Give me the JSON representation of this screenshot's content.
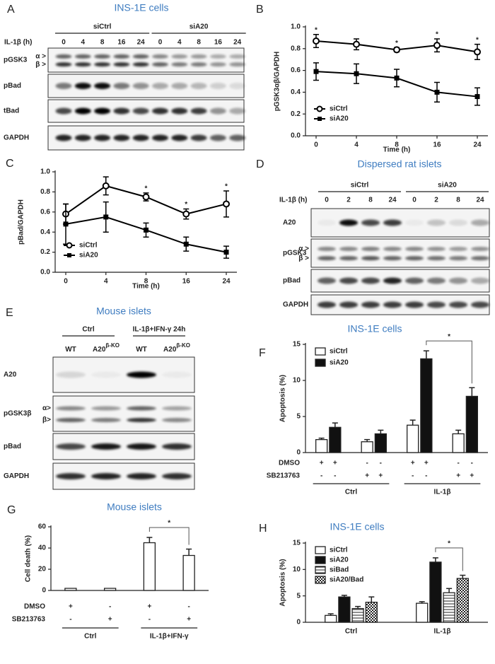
{
  "blots": [
    {
      "panel": "A",
      "title": "INS-1E cells",
      "groups": [
        "siCtrl",
        "siA20"
      ],
      "lane_header": "IL-1β (h)",
      "lanes": [
        "0",
        "4",
        "8",
        "16",
        "24",
        "0",
        "4",
        "8",
        "16",
        "24"
      ],
      "rows": [
        {
          "label": "pGSK3",
          "markers": [
            "α >",
            "β >"
          ]
        },
        {
          "label": "pBad"
        },
        {
          "label": "tBad"
        },
        {
          "label": "GAPDH"
        }
      ]
    },
    {
      "panel": "D",
      "title": "Dispersed rat islets",
      "groups": [
        "siCtrl",
        "siA20"
      ],
      "lane_header": "IL-1β (h)",
      "lanes": [
        "0",
        "2",
        "8",
        "24",
        "0",
        "2",
        "8",
        "24"
      ],
      "rows": [
        {
          "label": "A20"
        },
        {
          "label": "pGSK3",
          "markers": [
            "α >",
            "β >"
          ]
        },
        {
          "label": "pBad"
        },
        {
          "label": "GAPDH"
        }
      ]
    },
    {
      "panel": "E",
      "title": "Mouse islets",
      "groups": [
        "Ctrl",
        "IL-1β+IFN-γ 24h"
      ],
      "lanes": [
        {
          "text": "WT"
        },
        {
          "text": "A20",
          "sup": "β-KO"
        },
        {
          "text": "WT"
        },
        {
          "text": "A20",
          "sup": "β-KO"
        }
      ],
      "rows": [
        {
          "label": "A20"
        },
        {
          "label": "pGSK3β",
          "markers": [
            "α>",
            "β>"
          ]
        },
        {
          "label": "pBad"
        },
        {
          "label": "GAPDH"
        }
      ]
    }
  ],
  "chart_data": [
    {
      "panel": "B",
      "type": "line",
      "ylabel": "pGSK3αβ/GAPDH",
      "xlabel": "Time (h)",
      "categories": [
        "0",
        "4",
        "8",
        "16",
        "24"
      ],
      "ylim": [
        0,
        1.0
      ],
      "yticks": [
        {
          "value": 0,
          "label": "0.0"
        },
        {
          "value": 0.2,
          "label": "0.2"
        },
        {
          "value": 0.4,
          "label": "0.4"
        },
        {
          "value": 0.6,
          "label": "0.6"
        },
        {
          "value": 0.8,
          "label": "0.8"
        },
        {
          "value": 1.0,
          "label": "1.0"
        }
      ],
      "series": [
        {
          "name": "siCtrl",
          "color": "#000000",
          "marker": "circle",
          "values": [
            0.87,
            0.84,
            0.79,
            0.83,
            0.77
          ],
          "errors": [
            0.06,
            0.05,
            0.02,
            0.06,
            0.07
          ]
        },
        {
          "name": "siA20",
          "color": "#000000",
          "marker": "square",
          "values": [
            0.59,
            0.57,
            0.53,
            0.4,
            0.36
          ],
          "errors": [
            0.08,
            0.09,
            0.08,
            0.09,
            0.08
          ]
        }
      ],
      "annotations": [
        "*",
        null,
        "*",
        "*",
        "*"
      ],
      "legend": "lower left"
    },
    {
      "panel": "C",
      "type": "line",
      "ylabel": "pBad/GAPDH",
      "xlabel": "Time (h)",
      "categories": [
        "0",
        "4",
        "8",
        "16",
        "24"
      ],
      "ylim": [
        0,
        1.0
      ],
      "yticks": [
        {
          "value": 0,
          "label": "0.0"
        },
        {
          "value": 0.2,
          "label": "0.2"
        },
        {
          "value": 0.4,
          "label": "0.4"
        },
        {
          "value": 0.6,
          "label": "0.6"
        },
        {
          "value": 0.8,
          "label": "0.8"
        },
        {
          "value": 1.0,
          "label": "1.0"
        }
      ],
      "series": [
        {
          "name": "siCtrl",
          "color": "#000000",
          "marker": "circle",
          "values": [
            0.58,
            0.86,
            0.75,
            0.58,
            0.68
          ],
          "errors": [
            0.1,
            0.09,
            0.04,
            0.05,
            0.13
          ]
        },
        {
          "name": "siA20",
          "color": "#000000",
          "marker": "square",
          "values": [
            0.48,
            0.55,
            0.42,
            0.28,
            0.2
          ],
          "errors": [
            0.2,
            0.15,
            0.07,
            0.07,
            0.06
          ]
        }
      ],
      "annotations": [
        null,
        null,
        "*",
        "*",
        "*"
      ],
      "legend": "lower left"
    },
    {
      "panel": "F",
      "type": "bar",
      "title": "INS-1E cells",
      "ylabel": "Apoptosis (%)",
      "categories": [
        null,
        null,
        null,
        null
      ],
      "ylim": [
        0,
        15
      ],
      "yticks": [
        0,
        5,
        10,
        15
      ],
      "series": [
        {
          "name": "siCtrl",
          "color": "#ffffff",
          "values": [
            1.8,
            1.5,
            3.8,
            2.6
          ],
          "errors": [
            0.2,
            0.3,
            0.7,
            0.5
          ]
        },
        {
          "name": "siA20",
          "color": "#111111",
          "values": [
            3.5,
            2.6,
            13,
            7.8
          ],
          "errors": [
            0.6,
            0.5,
            1.1,
            1.2
          ]
        }
      ],
      "rows": [
        {
          "label": "DMSO",
          "marks": [
            "+",
            "+",
            "-",
            "-",
            "+",
            "+",
            "-",
            "-"
          ]
        },
        {
          "label": "SB213763",
          "marks": [
            "-",
            "-",
            "+",
            "+",
            "-",
            "-",
            "+",
            "+"
          ]
        }
      ],
      "groups": [
        "Ctrl",
        "IL-1β"
      ],
      "significance": "*",
      "legend": "upper left"
    },
    {
      "panel": "G",
      "type": "bar",
      "title": "Mouse islets",
      "ylabel": "Cell death (%)",
      "categories": [
        null,
        null,
        null,
        null
      ],
      "ylim": [
        0,
        60
      ],
      "yticks": [
        0,
        20,
        40,
        60
      ],
      "series": [
        {
          "name": null,
          "color": "#ffffff",
          "values": [
            2,
            2,
            45,
            33
          ],
          "errors": [
            0,
            0,
            5,
            6
          ]
        }
      ],
      "rows": [
        {
          "label": "DMSO",
          "marks": [
            "+",
            "-",
            "+",
            "-"
          ]
        },
        {
          "label": "SB213763",
          "marks": [
            "-",
            "+",
            "-",
            "+"
          ]
        }
      ],
      "groups": [
        "Ctrl",
        "IL-1β+IFN-γ"
      ],
      "significance": "*"
    },
    {
      "panel": "H",
      "type": "bar",
      "title": "INS-1E cells",
      "ylabel": "Apoptosis (%)",
      "categories": [
        "Ctrl",
        "IL-1β"
      ],
      "ylim": [
        0,
        15
      ],
      "yticks": [
        0,
        5,
        10,
        15
      ],
      "series": [
        {
          "name": "siCtrl",
          "color": "#ffffff",
          "values": [
            1.3,
            3.6
          ],
          "errors": [
            0.3,
            0.3
          ]
        },
        {
          "name": "siA20",
          "color": "#111111",
          "values": [
            4.8,
            11.4
          ],
          "errors": [
            0.3,
            0.8
          ]
        },
        {
          "name": "siBad",
          "color": "#ffffff",
          "pattern": "stripes",
          "values": [
            2.6,
            5.6
          ],
          "errors": [
            0.4,
            0.8
          ]
        },
        {
          "name": "siA20/Bad",
          "color": "#ffffff",
          "pattern": "check",
          "values": [
            3.8,
            8.3
          ],
          "errors": [
            1.0,
            0.6
          ]
        }
      ],
      "significance": "*",
      "legend": "upper left"
    }
  ]
}
